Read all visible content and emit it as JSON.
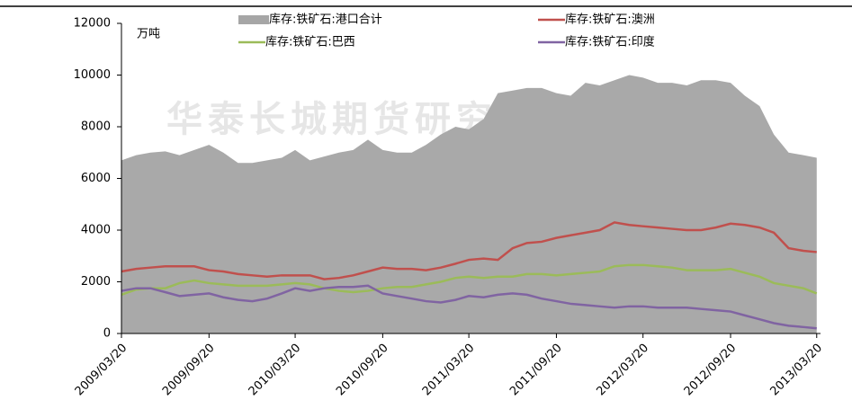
{
  "chart_data": {
    "type": "area_line",
    "unit_label": "万吨",
    "watermark": "华泰长城期货研究所",
    "x": [
      "2009/03/20",
      "2009/04/20",
      "2009/05/20",
      "2009/06/20",
      "2009/07/20",
      "2009/08/20",
      "2009/09/20",
      "2009/10/20",
      "2009/11/20",
      "2009/12/20",
      "2010/01/20",
      "2010/02/20",
      "2010/03/20",
      "2010/04/20",
      "2010/05/20",
      "2010/06/20",
      "2010/07/20",
      "2010/08/20",
      "2010/09/20",
      "2010/10/20",
      "2010/11/20",
      "2010/12/20",
      "2011/01/20",
      "2011/02/20",
      "2011/03/20",
      "2011/04/20",
      "2011/05/20",
      "2011/06/20",
      "2011/07/20",
      "2011/08/20",
      "2011/09/20",
      "2011/10/20",
      "2011/11/20",
      "2011/12/20",
      "2012/01/20",
      "2012/02/20",
      "2012/03/20",
      "2012/04/20",
      "2012/05/20",
      "2012/06/20",
      "2012/07/20",
      "2012/08/20",
      "2012/09/20",
      "2012/10/20",
      "2012/11/20",
      "2012/12/20",
      "2013/01/20",
      "2013/02/20",
      "2013/03/20"
    ],
    "xlim": [
      "2009/03/20",
      "2013/03/28"
    ],
    "xticks": [
      "2009/03/20",
      "2009/09/20",
      "2010/03/20",
      "2010/09/20",
      "2011/03/20",
      "2011/09/20",
      "2012/03/20",
      "2012/09/20",
      "2013/03/20"
    ],
    "ylim": [
      0,
      12000
    ],
    "yticks": [
      0,
      2000,
      4000,
      6000,
      8000,
      10000,
      12000
    ],
    "series": [
      {
        "name": "库存:铁矿石:港口合计",
        "color": "#a6a6a6",
        "kind": "area",
        "values": [
          6700,
          6900,
          7000,
          7050,
          6900,
          7100,
          7300,
          7000,
          6600,
          6600,
          6700,
          6800,
          7100,
          6700,
          6850,
          7000,
          7100,
          7500,
          7100,
          7000,
          7000,
          7300,
          7700,
          8000,
          7900,
          8300,
          9300,
          9400,
          9500,
          9500,
          9300,
          9200,
          9700,
          9600,
          9800,
          10000,
          9900,
          9700,
          9700,
          9600,
          9800,
          9800,
          9700,
          9200,
          8800,
          7700,
          7000,
          6900,
          6800
        ]
      },
      {
        "name": "库存:铁矿石:澳洲",
        "color": "#c0504d",
        "kind": "line",
        "values": [
          2400,
          2500,
          2550,
          2600,
          2600,
          2600,
          2450,
          2400,
          2300,
          2250,
          2200,
          2250,
          2250,
          2250,
          2100,
          2150,
          2250,
          2400,
          2550,
          2500,
          2500,
          2450,
          2550,
          2700,
          2850,
          2900,
          2850,
          3300,
          3500,
          3550,
          3700,
          3800,
          3900,
          4000,
          4300,
          4200,
          4150,
          4100,
          4050,
          4000,
          4000,
          4100,
          4250,
          4200,
          4100,
          3900,
          3300,
          3200,
          3150
        ]
      },
      {
        "name": "库存:铁矿石:巴西",
        "color": "#9bbb59",
        "kind": "line",
        "values": [
          1500,
          1700,
          1750,
          1750,
          1950,
          2050,
          1950,
          1900,
          1850,
          1850,
          1850,
          1900,
          1950,
          1900,
          1750,
          1650,
          1600,
          1650,
          1750,
          1800,
          1800,
          1900,
          2000,
          2150,
          2200,
          2150,
          2200,
          2200,
          2300,
          2300,
          2250,
          2300,
          2350,
          2400,
          2600,
          2650,
          2650,
          2600,
          2550,
          2450,
          2450,
          2450,
          2500,
          2350,
          2200,
          1950,
          1850,
          1750,
          1550
        ]
      },
      {
        "name": "库存:铁矿石:印度",
        "color": "#8064a2",
        "kind": "line",
        "values": [
          1650,
          1750,
          1750,
          1600,
          1450,
          1500,
          1550,
          1400,
          1300,
          1250,
          1350,
          1550,
          1750,
          1650,
          1750,
          1800,
          1800,
          1850,
          1550,
          1450,
          1350,
          1250,
          1200,
          1300,
          1450,
          1400,
          1500,
          1550,
          1500,
          1350,
          1250,
          1150,
          1100,
          1050,
          1000,
          1050,
          1050,
          1000,
          1000,
          1000,
          950,
          900,
          850,
          700,
          550,
          400,
          300,
          250,
          200
        ]
      }
    ]
  }
}
